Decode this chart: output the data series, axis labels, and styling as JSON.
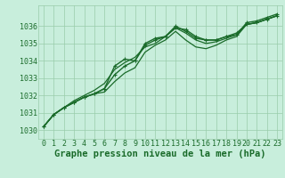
{
  "title": "Graphe pression niveau de la mer (hPa)",
  "background_color": "#c8eedc",
  "grid_color": "#99ccaa",
  "line_color": "#1a6b2a",
  "marker_color": "#1a6b2a",
  "xlim": [
    -0.5,
    23.5
  ],
  "ylim": [
    1029.5,
    1037.2
  ],
  "yticks": [
    1030,
    1031,
    1032,
    1033,
    1034,
    1035,
    1036
  ],
  "xticks": [
    0,
    1,
    2,
    3,
    4,
    5,
    6,
    7,
    8,
    9,
    10,
    11,
    12,
    13,
    14,
    15,
    16,
    17,
    18,
    19,
    20,
    21,
    22,
    23
  ],
  "series": [
    {
      "y": [
        1030.2,
        1030.9,
        1031.3,
        1031.6,
        1031.9,
        1032.1,
        1032.4,
        1033.7,
        1034.1,
        1034.0,
        1035.0,
        1035.3,
        1035.4,
        1035.9,
        1035.8,
        1035.4,
        1035.2,
        1035.2,
        1035.4,
        1035.5,
        1036.2,
        1036.3,
        1036.5,
        1036.7
      ],
      "marker": true,
      "lw": 1.0
    },
    {
      "y": [
        1030.2,
        1030.9,
        1031.3,
        1031.6,
        1031.9,
        1032.1,
        1032.4,
        1033.2,
        1033.7,
        1034.0,
        1034.9,
        1035.2,
        1035.4,
        1036.0,
        1035.7,
        1035.3,
        1035.2,
        1035.2,
        1035.4,
        1035.6,
        1036.1,
        1036.2,
        1036.4,
        1036.6
      ],
      "marker": true,
      "lw": 1.0
    },
    {
      "y": [
        1030.2,
        1030.9,
        1031.3,
        1031.6,
        1031.9,
        1032.1,
        1032.2,
        1032.8,
        1033.3,
        1033.6,
        1034.5,
        1034.9,
        1035.2,
        1035.7,
        1035.2,
        1034.8,
        1034.7,
        1034.9,
        1035.2,
        1035.4,
        1036.1,
        1036.2,
        1036.4,
        1036.6
      ],
      "marker": false,
      "lw": 0.9
    },
    {
      "y": [
        1030.2,
        1030.9,
        1031.3,
        1031.7,
        1032.0,
        1032.3,
        1032.7,
        1033.5,
        1033.9,
        1034.2,
        1034.8,
        1035.0,
        1035.4,
        1035.9,
        1035.6,
        1035.2,
        1035.0,
        1035.1,
        1035.3,
        1035.5,
        1036.1,
        1036.2,
        1036.4,
        1036.6
      ],
      "marker": false,
      "lw": 0.9
    }
  ],
  "title_fontsize": 7.5,
  "tick_fontsize": 6.0
}
